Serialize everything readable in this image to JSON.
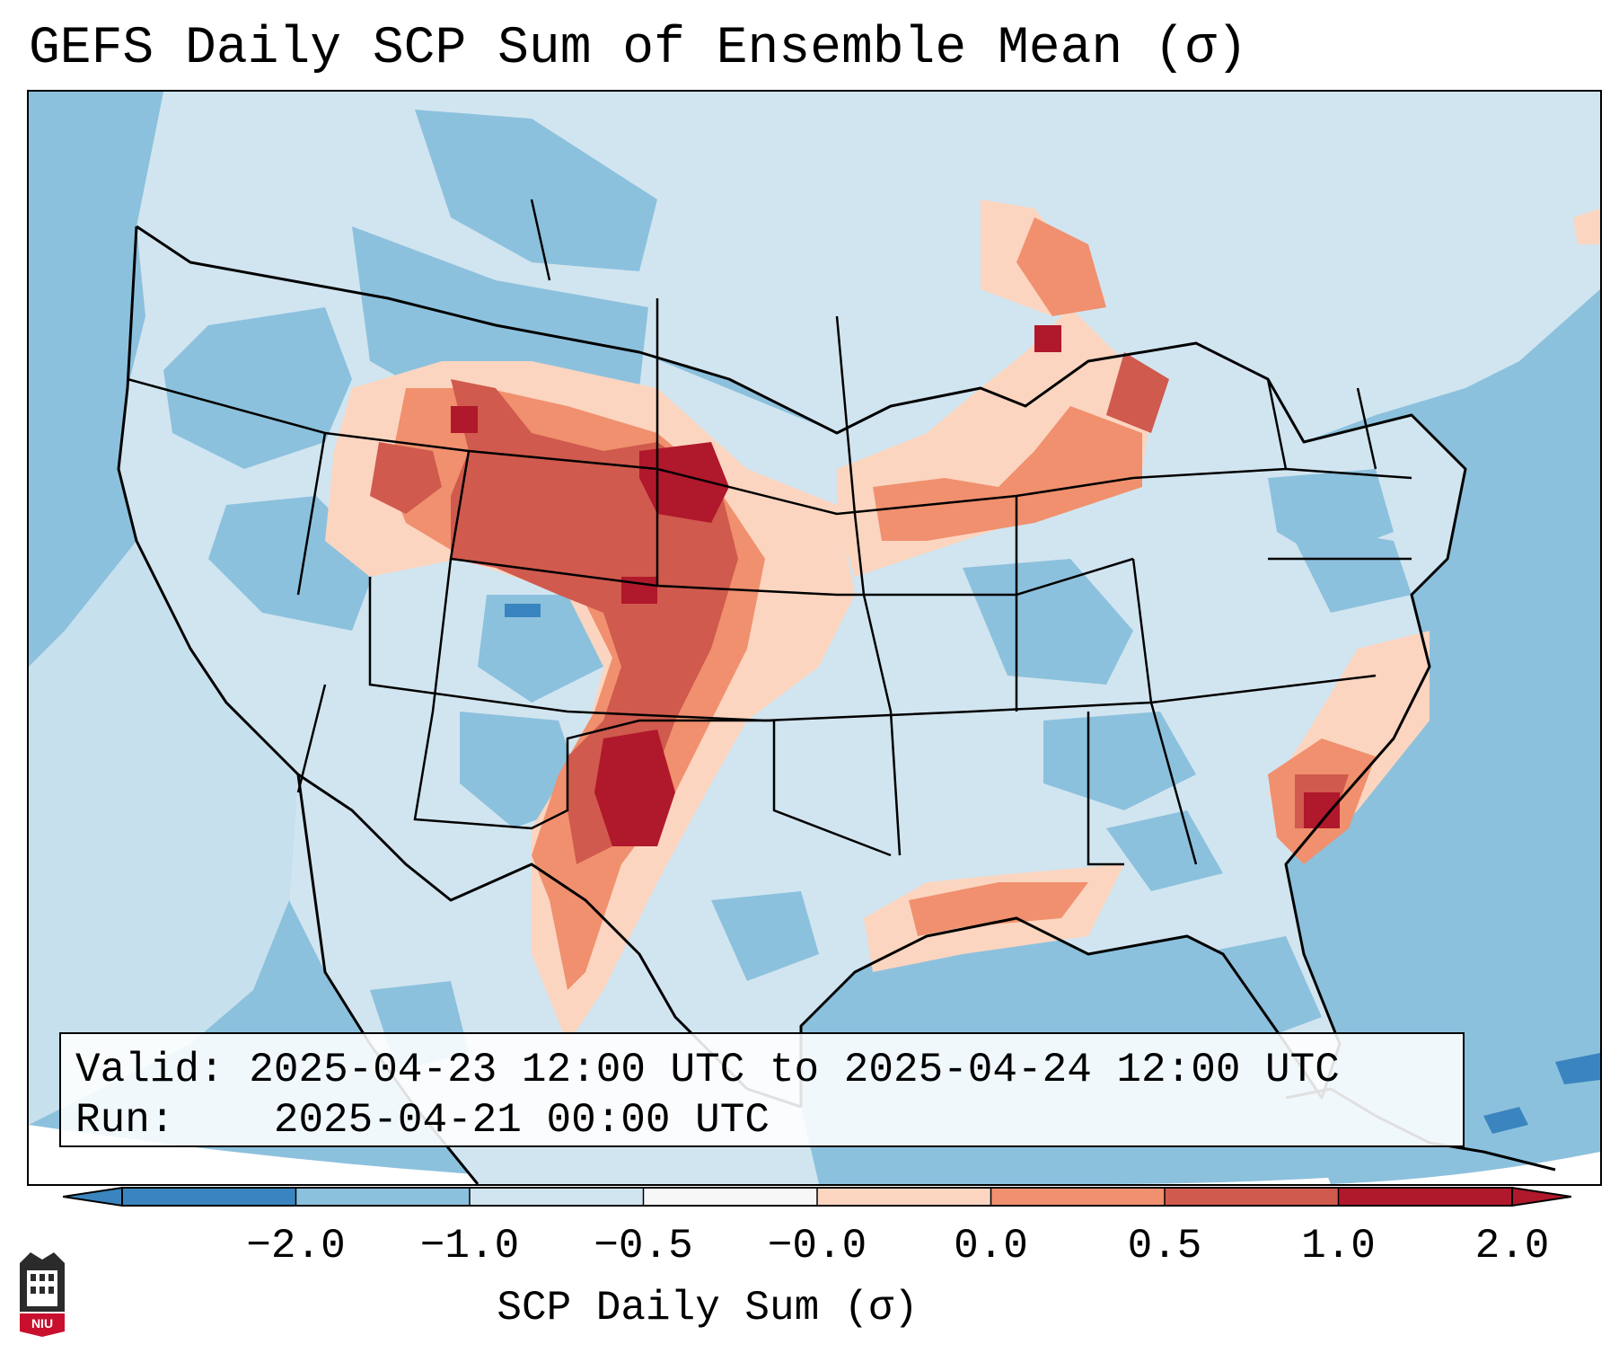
{
  "title": "GEFS Daily SCP Sum of Ensemble Mean (σ)",
  "info": {
    "valid_label": "Valid:",
    "valid_value": "2025-04-23 12:00 UTC to 2025-04-24 12:00 UTC",
    "run_label": "Run:",
    "run_value": "2025-04-21 00:00 UTC"
  },
  "colorbar": {
    "label": "SCP Daily Sum (σ)",
    "ticks": [
      "−2.0",
      "−1.0",
      "−0.5",
      "−0.0",
      "0.0",
      "0.5",
      "1.0",
      "2.0"
    ],
    "colors": [
      "#3a85bf",
      "#8cc1dd",
      "#d1e5f0",
      "#f7f7f7",
      "#fbd5c0",
      "#f0906e",
      "#d05a4d",
      "#b0182b"
    ]
  },
  "map": {
    "projection": "Lambert Conformal",
    "region": "Contiguous United States",
    "ocean_color": "#8cc1dd",
    "land_color": "#d1e5f0",
    "outside_color": "#ffffff"
  },
  "logo": {
    "text": "NIU",
    "icon": "university-seal-icon"
  }
}
